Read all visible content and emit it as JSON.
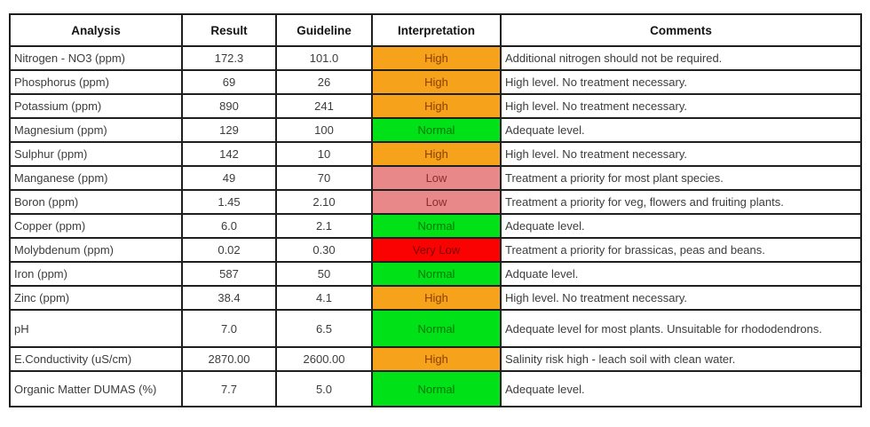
{
  "table": {
    "columns": [
      {
        "key": "analysis",
        "label": "Analysis"
      },
      {
        "key": "result",
        "label": "Result"
      },
      {
        "key": "guideline",
        "label": "Guideline"
      },
      {
        "key": "interpretation",
        "label": "Interpretation"
      },
      {
        "key": "comments",
        "label": "Comments"
      }
    ],
    "rows": [
      {
        "analysis": "Nitrogen - NO3 (ppm)",
        "result": "172.3",
        "guideline": "101.0",
        "interpretation": "High",
        "level": "high",
        "comments": "Additional nitrogen should not be required."
      },
      {
        "analysis": "Phosphorus (ppm)",
        "result": "69",
        "guideline": "26",
        "interpretation": "High",
        "level": "high",
        "comments": "High level. No treatment necessary."
      },
      {
        "analysis": "Potassium (ppm)",
        "result": "890",
        "guideline": "241",
        "interpretation": "High",
        "level": "high",
        "comments": "High level. No treatment necessary."
      },
      {
        "analysis": "Magnesium (ppm)",
        "result": "129",
        "guideline": "100",
        "interpretation": "Normal",
        "level": "normal",
        "comments": "Adequate level."
      },
      {
        "analysis": "Sulphur (ppm)",
        "result": "142",
        "guideline": "10",
        "interpretation": "High",
        "level": "high",
        "comments": "High level. No treatment necessary."
      },
      {
        "analysis": "Manganese (ppm)",
        "result": "49",
        "guideline": "70",
        "interpretation": "Low",
        "level": "low",
        "comments": "Treatment a priority for most plant species."
      },
      {
        "analysis": "Boron (ppm)",
        "result": "1.45",
        "guideline": "2.10",
        "interpretation": "Low",
        "level": "low",
        "comments": "Treatment a priority for veg, flowers and fruiting plants."
      },
      {
        "analysis": "Copper (ppm)",
        "result": "6.0",
        "guideline": "2.1",
        "interpretation": "Normal",
        "level": "normal",
        "comments": "Adequate level."
      },
      {
        "analysis": "Molybdenum (ppm)",
        "result": "0.02",
        "guideline": "0.30",
        "interpretation": "Very Low",
        "level": "very_low",
        "comments": "Treatment a priority for brassicas, peas and beans."
      },
      {
        "analysis": "Iron (ppm)",
        "result": "587",
        "guideline": "50",
        "interpretation": "Normal",
        "level": "normal",
        "comments": "Adquate level."
      },
      {
        "analysis": "Zinc (ppm)",
        "result": "38.4",
        "guideline": "4.1",
        "interpretation": "High",
        "level": "high",
        "comments": "High level. No treatment necessary."
      },
      {
        "analysis": "pH",
        "result": "7.0",
        "guideline": "6.5",
        "interpretation": "Normal",
        "level": "normal",
        "comments": "Adequate level for most plants. Unsuitable for rhododendrons."
      },
      {
        "analysis": "E.Conductivity (uS/cm)",
        "result": "2870.00",
        "guideline": "2600.00",
        "interpretation": "High",
        "level": "high",
        "comments": "Salinity risk high - leach soil with clean water."
      },
      {
        "analysis": "Organic Matter DUMAS (%)",
        "result": "7.7",
        "guideline": "5.0",
        "interpretation": "Normal",
        "level": "normal",
        "comments": "Adequate level."
      }
    ]
  },
  "colors": {
    "high": {
      "bg": "#F6A21B",
      "text": "#8B4000"
    },
    "normal": {
      "bg": "#00E118",
      "text": "#067806"
    },
    "low": {
      "bg": "#E98888",
      "text": "#8B2C2C"
    },
    "very_low": {
      "bg": "#FA0202",
      "text": "#7E0000"
    },
    "border": "#1f1f1f"
  }
}
